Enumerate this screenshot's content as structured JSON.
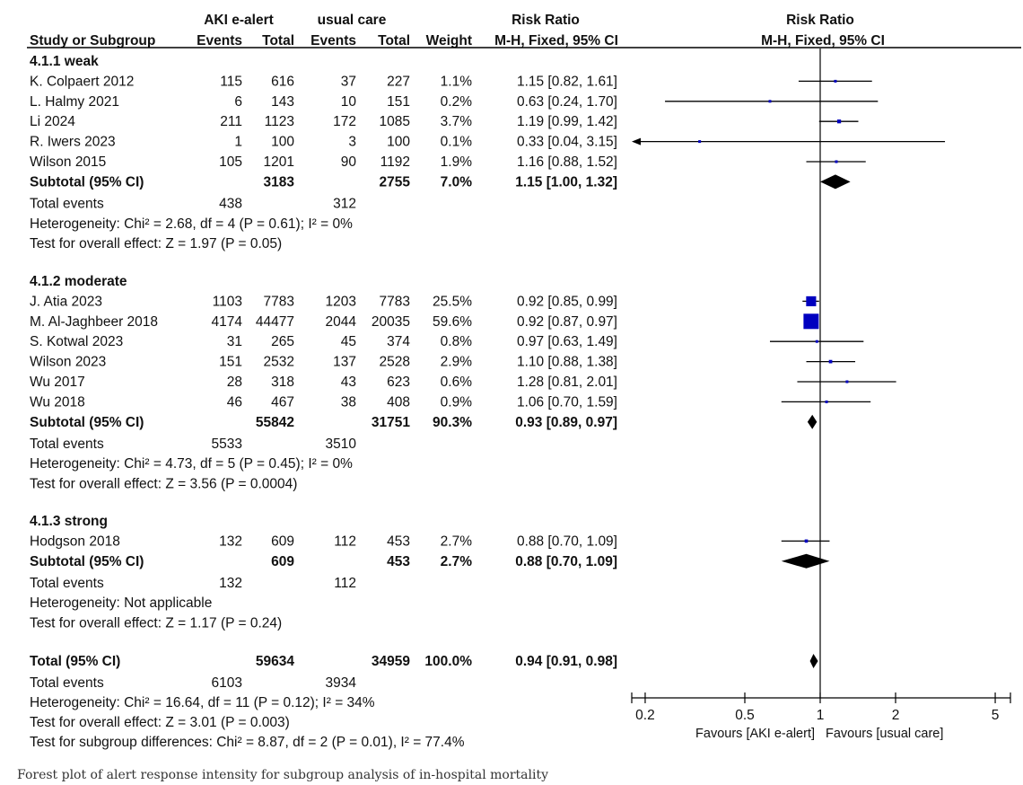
{
  "chart_data": {
    "type": "forest",
    "columns": {
      "group1_label": "AKI e-alert",
      "group2_label": "usual care",
      "rr_header": "Risk Ratio",
      "rr_sub": "M-H, Fixed, 95% CI",
      "study_header": "Study or Subgroup",
      "events": "Events",
      "total": "Total",
      "weight": "Weight"
    },
    "subgroups": [
      {
        "title": "4.1.1 weak",
        "studies": [
          {
            "name": "K. Colpaert 2012",
            "e1": "115",
            "t1": "616",
            "e2": "37",
            "t2": "227",
            "w": "1.1%",
            "ci": "1.15 [0.82, 1.61]",
            "rr": 1.15,
            "lo": 0.82,
            "hi": 1.61,
            "weight": 1.1
          },
          {
            "name": "L. Halmy 2021",
            "e1": "6",
            "t1": "143",
            "e2": "10",
            "t2": "151",
            "w": "0.2%",
            "ci": "0.63 [0.24, 1.70]",
            "rr": 0.63,
            "lo": 0.24,
            "hi": 1.7,
            "weight": 0.2
          },
          {
            "name": "Li 2024",
            "e1": "211",
            "t1": "1123",
            "e2": "172",
            "t2": "1085",
            "w": "3.7%",
            "ci": "1.19 [0.99, 1.42]",
            "rr": 1.19,
            "lo": 0.99,
            "hi": 1.42,
            "weight": 3.7
          },
          {
            "name": "R. Iwers 2023",
            "e1": "1",
            "t1": "100",
            "e2": "3",
            "t2": "100",
            "w": "0.1%",
            "ci": "0.33 [0.04, 3.15]",
            "rr": 0.33,
            "lo": 0.04,
            "hi": 3.15,
            "weight": 0.1
          },
          {
            "name": "Wilson 2015",
            "e1": "105",
            "t1": "1201",
            "e2": "90",
            "t2": "1192",
            "w": "1.9%",
            "ci": "1.16 [0.88, 1.52]",
            "rr": 1.16,
            "lo": 0.88,
            "hi": 1.52,
            "weight": 1.9
          }
        ],
        "subtotal": {
          "label": "Subtotal (95% CI)",
          "t1": "3183",
          "t2": "2755",
          "w": "7.0%",
          "ci": "1.15 [1.00, 1.32]",
          "rr": 1.15,
          "lo": 1.0,
          "hi": 1.32
        },
        "total_events": {
          "label": "Total events",
          "e1": "438",
          "e2": "312"
        },
        "heterogeneity": "Heterogeneity: Chi² = 2.68, df = 4 (P = 0.61); I² = 0%",
        "overall": "Test for overall effect: Z = 1.97 (P = 0.05)"
      },
      {
        "title": "4.1.2 moderate",
        "studies": [
          {
            "name": "J. Atia 2023",
            "e1": "1103",
            "t1": "7783",
            "e2": "1203",
            "t2": "7783",
            "w": "25.5%",
            "ci": "0.92 [0.85, 0.99]",
            "rr": 0.92,
            "lo": 0.85,
            "hi": 0.99,
            "weight": 25.5
          },
          {
            "name": "M. Al-Jaghbeer 2018",
            "e1": "4174",
            "t1": "44477",
            "e2": "2044",
            "t2": "20035",
            "w": "59.6%",
            "ci": "0.92 [0.87, 0.97]",
            "rr": 0.92,
            "lo": 0.87,
            "hi": 0.97,
            "weight": 59.6
          },
          {
            "name": "S. Kotwal 2023",
            "e1": "31",
            "t1": "265",
            "e2": "45",
            "t2": "374",
            "w": "0.8%",
            "ci": "0.97 [0.63, 1.49]",
            "rr": 0.97,
            "lo": 0.63,
            "hi": 1.49,
            "weight": 0.8
          },
          {
            "name": "Wilson 2023",
            "e1": "151",
            "t1": "2532",
            "e2": "137",
            "t2": "2528",
            "w": "2.9%",
            "ci": "1.10 [0.88, 1.38]",
            "rr": 1.1,
            "lo": 0.88,
            "hi": 1.38,
            "weight": 2.9
          },
          {
            "name": "Wu 2017",
            "e1": "28",
            "t1": "318",
            "e2": "43",
            "t2": "623",
            "w": "0.6%",
            "ci": "1.28 [0.81, 2.01]",
            "rr": 1.28,
            "lo": 0.81,
            "hi": 2.01,
            "weight": 0.6
          },
          {
            "name": "Wu 2018",
            "e1": "46",
            "t1": "467",
            "e2": "38",
            "t2": "408",
            "w": "0.9%",
            "ci": "1.06 [0.70, 1.59]",
            "rr": 1.06,
            "lo": 0.7,
            "hi": 1.59,
            "weight": 0.9
          }
        ],
        "subtotal": {
          "label": "Subtotal (95% CI)",
          "t1": "55842",
          "t2": "31751",
          "w": "90.3%",
          "ci": "0.93 [0.89, 0.97]",
          "rr": 0.93,
          "lo": 0.89,
          "hi": 0.97
        },
        "total_events": {
          "label": "Total events",
          "e1": "5533",
          "e2": "3510"
        },
        "heterogeneity": "Heterogeneity: Chi² = 4.73, df = 5 (P = 0.45); I² = 0%",
        "overall": "Test for overall effect: Z = 3.56 (P = 0.0004)"
      },
      {
        "title": "4.1.3 strong",
        "studies": [
          {
            "name": "Hodgson 2018",
            "e1": "132",
            "t1": "609",
            "e2": "112",
            "t2": "453",
            "w": "2.7%",
            "ci": "0.88 [0.70, 1.09]",
            "rr": 0.88,
            "lo": 0.7,
            "hi": 1.09,
            "weight": 2.7
          }
        ],
        "subtotal": {
          "label": "Subtotal (95% CI)",
          "t1": "609",
          "t2": "453",
          "w": "2.7%",
          "ci": "0.88 [0.70, 1.09]",
          "rr": 0.88,
          "lo": 0.7,
          "hi": 1.09
        },
        "total_events": {
          "label": "Total events",
          "e1": "132",
          "e2": "112"
        },
        "heterogeneity": "Heterogeneity: Not applicable",
        "overall": "Test for overall effect: Z = 1.17 (P = 0.24)"
      }
    ],
    "total": {
      "label": "Total (95% CI)",
      "t1": "59634",
      "t2": "34959",
      "w": "100.0%",
      "ci": "0.94 [0.91, 0.98]",
      "rr": 0.94,
      "lo": 0.91,
      "hi": 0.98,
      "events_label": "Total events",
      "e1": "6103",
      "e2": "3934",
      "heterogeneity": "Heterogeneity: Chi² = 16.64, df = 11 (P = 0.12); I² = 34%",
      "overall": "Test for overall effect: Z = 3.01 (P = 0.003)",
      "subgroup_diff": "Test for subgroup differences: Chi² = 8.87, df = 2 (P = 0.01), I² = 77.4%"
    },
    "axis": {
      "scale": "log",
      "xlim": [
        0.2,
        5
      ],
      "ticks": [
        0.2,
        0.5,
        1,
        2,
        5
      ],
      "tick_labels": [
        "0.2",
        "0.5",
        "1",
        "2",
        "5"
      ],
      "favours_left": "Favours [AKI e-alert]",
      "favours_right": "Favours [usual care]"
    },
    "colors": {
      "square": "#0000c0",
      "line": "#000000",
      "diamond": "#000000"
    }
  },
  "caption": "Forest plot of alert response intensity for subgroup analysis of in-hospital mortality"
}
